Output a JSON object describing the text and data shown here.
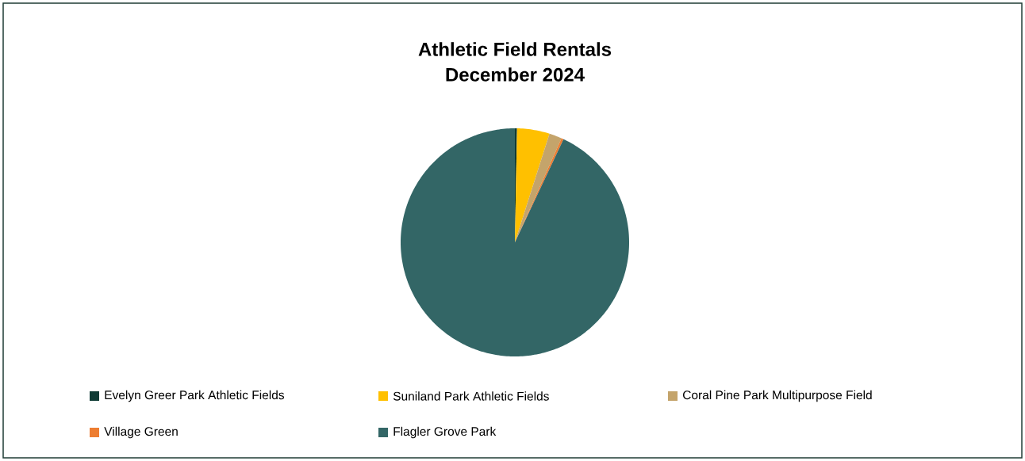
{
  "chart_data": {
    "type": "pie",
    "title": "Athletic Field Rentals\nDecember 2024",
    "categories": [
      "Evelyn Greer Park Athletic Fields",
      "Suniland Park Athletic Fields",
      "Coral Pine Park Multipurpose Field",
      "Village Green",
      "Flagler Grove Park"
    ],
    "values": [
      0.3,
      4.6,
      1.8,
      0.3,
      93.0
    ],
    "colors": [
      "#0F3B35",
      "#FFC000",
      "#C4A46B",
      "#ED7D31",
      "#336666"
    ],
    "legend": "bottom"
  }
}
